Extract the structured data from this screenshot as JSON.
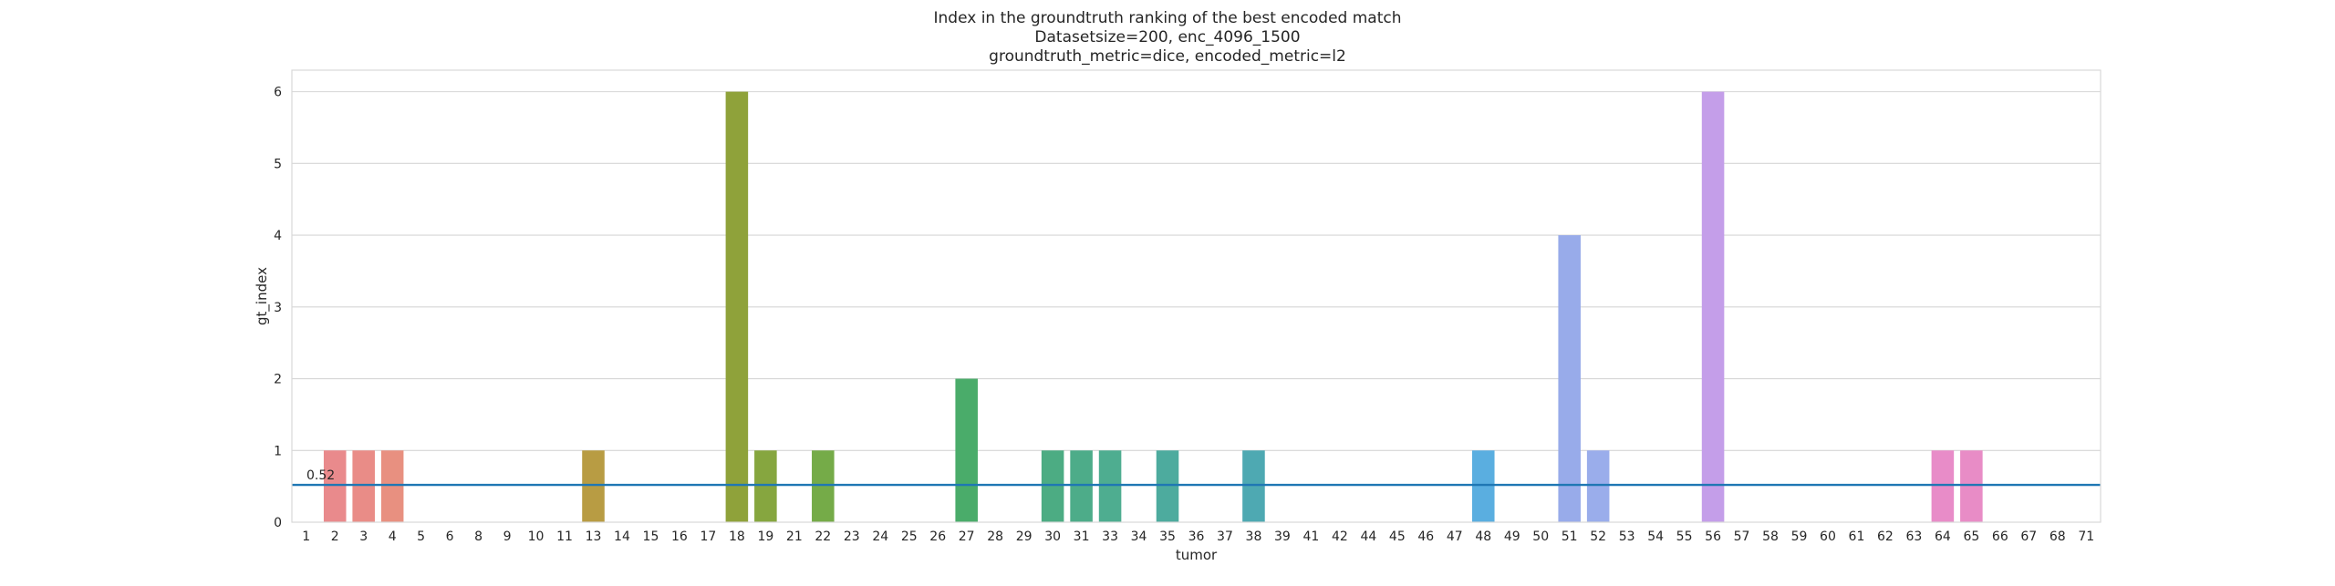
{
  "chart_data": {
    "type": "bar",
    "title_lines": [
      "Index in the groundtruth ranking of the best encoded match",
      "Datasetsize=200, enc_4096_1500",
      "groundtruth_metric=dice, encoded_metric=l2"
    ],
    "xlabel": "tumor",
    "ylabel": "gt_index",
    "ylim": [
      0,
      6.3
    ],
    "yticks": [
      0,
      1,
      2,
      3,
      4,
      5,
      6
    ],
    "grid": true,
    "categories": [
      "1",
      "2",
      "3",
      "4",
      "5",
      "6",
      "8",
      "9",
      "10",
      "11",
      "13",
      "14",
      "15",
      "16",
      "17",
      "18",
      "19",
      "21",
      "22",
      "23",
      "24",
      "25",
      "26",
      "27",
      "28",
      "29",
      "30",
      "31",
      "33",
      "34",
      "35",
      "36",
      "37",
      "38",
      "39",
      "41",
      "42",
      "44",
      "45",
      "46",
      "47",
      "48",
      "49",
      "50",
      "51",
      "52",
      "53",
      "54",
      "55",
      "56",
      "57",
      "58",
      "59",
      "60",
      "61",
      "62",
      "63",
      "64",
      "65",
      "66",
      "67",
      "68",
      "71"
    ],
    "values": [
      0,
      1,
      1,
      1,
      0,
      0,
      0,
      0,
      0,
      0,
      1,
      0,
      0,
      0,
      0,
      6,
      1,
      0,
      1,
      0,
      0,
      0,
      0,
      2,
      0,
      0,
      1,
      1,
      1,
      0,
      1,
      0,
      0,
      1,
      0,
      0,
      0,
      0,
      0,
      0,
      0,
      1,
      0,
      0,
      4,
      1,
      0,
      0,
      0,
      6,
      0,
      0,
      0,
      0,
      0,
      0,
      0,
      1,
      1,
      0,
      0,
      0,
      0
    ],
    "colors": [
      "#e8868a",
      "#e98a8c",
      "#e98c87",
      "#e89080",
      "#e59278",
      "#df9470",
      "#d69867",
      "#cf9b5e",
      "#c89e55",
      "#bc9e48",
      "#b89c43",
      "#ae9e42",
      "#a6a13f",
      "#9fa43d",
      "#97a53c",
      "#8fa23a",
      "#86a63f",
      "#7da843",
      "#75ab48",
      "#68ac4c",
      "#5daf55",
      "#53b160",
      "#4fb265",
      "#4aac6a",
      "#48ab72",
      "#4aab79",
      "#4cac83",
      "#4dac89",
      "#4ead90",
      "#4eac97",
      "#4dab9e",
      "#4caba4",
      "#4daaab",
      "#4ea9b2",
      "#4fa8bc",
      "#51a7c5",
      "#54a7cd",
      "#57a8d4",
      "#5aa8da",
      "#5ea9df",
      "#61aae1",
      "#5aaee0",
      "#7aabe6",
      "#8aabe8",
      "#98abea",
      "#9aadeb",
      "#a7abed",
      "#b3a8ee",
      "#bda5ee",
      "#c49ee9",
      "#cb97e3",
      "#d292dd",
      "#da8ed6",
      "#df8bd0",
      "#e48ac9",
      "#e78ac1",
      "#e88bb9",
      "#e88cc8",
      "#e88cc6",
      "#e68ab5",
      "#e589ac",
      "#e588a2",
      "#e78899"
    ],
    "reference_line": {
      "value": 0.52,
      "label": "0.52",
      "color": "#1f77b4"
    }
  }
}
